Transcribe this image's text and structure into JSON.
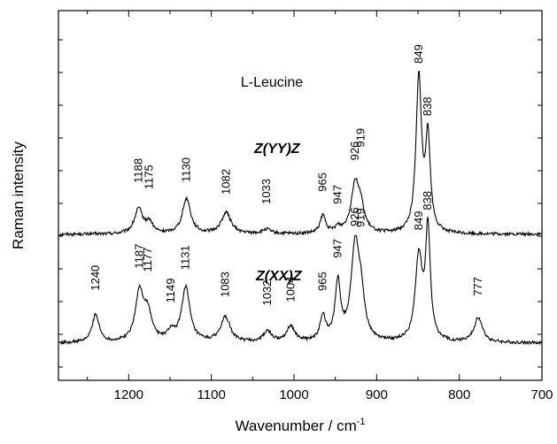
{
  "chart_data": {
    "type": "line",
    "title": "L-Leucine",
    "xlabel": "Wavenumber / cm",
    "xlabel_superscript": "-1",
    "ylabel": "Raman intensity",
    "xlim": [
      1285,
      700
    ],
    "x_reversed": true,
    "x_ticks": [
      1200,
      1100,
      1000,
      900,
      800,
      700
    ],
    "y_ticks_labeled": false,
    "grid": false,
    "legend": "none",
    "line_color": "#000000",
    "series": [
      {
        "name": "Z(YY)Z",
        "baseline": 0.0,
        "peaks": [
          {
            "x": 1188,
            "height": 0.28,
            "width": 6,
            "label": "1188"
          },
          {
            "x": 1175,
            "height": 0.12,
            "width": 5,
            "label": "1175"
          },
          {
            "x": 1130,
            "height": 0.4,
            "width": 6,
            "label": "1130"
          },
          {
            "x": 1082,
            "height": 0.24,
            "width": 7,
            "label": "1082"
          },
          {
            "x": 1033,
            "height": 0.05,
            "width": 6,
            "label": "1033"
          },
          {
            "x": 965,
            "height": 0.2,
            "width": 4,
            "label": "965"
          },
          {
            "x": 947,
            "height": 0.06,
            "width": 4,
            "label": "947"
          },
          {
            "x": 926,
            "height": 0.55,
            "width": 6,
            "label": "926"
          },
          {
            "x": 919,
            "height": 0.22,
            "width": 5,
            "label": "919"
          },
          {
            "x": 849,
            "height": 1.75,
            "width": 4,
            "label": "849"
          },
          {
            "x": 838,
            "height": 1.05,
            "width": 3.5,
            "label": "838"
          }
        ]
      },
      {
        "name": "Z(XX)Z",
        "baseline": 0.0,
        "peaks": [
          {
            "x": 1240,
            "height": 0.32,
            "width": 5,
            "label": "1240"
          },
          {
            "x": 1187,
            "height": 0.55,
            "width": 6,
            "label": "1187"
          },
          {
            "x": 1177,
            "height": 0.3,
            "width": 6,
            "label": "1177"
          },
          {
            "x": 1149,
            "height": 0.1,
            "width": 5,
            "label": "1149"
          },
          {
            "x": 1131,
            "height": 0.62,
            "width": 6,
            "label": "1131"
          },
          {
            "x": 1083,
            "height": 0.28,
            "width": 7,
            "label": "1083"
          },
          {
            "x": 1032,
            "height": 0.12,
            "width": 6,
            "label": "1032"
          },
          {
            "x": 1004,
            "height": 0.18,
            "width": 6,
            "label": "1004"
          },
          {
            "x": 965,
            "height": 0.28,
            "width": 4,
            "label": "965"
          },
          {
            "x": 947,
            "height": 0.65,
            "width": 4,
            "label": "947"
          },
          {
            "x": 926,
            "height": 1.05,
            "width": 6,
            "label": "926"
          },
          {
            "x": 919,
            "height": 0.4,
            "width": 5,
            "label": "919"
          },
          {
            "x": 849,
            "height": 0.95,
            "width": 5,
            "label": "849"
          },
          {
            "x": 838,
            "height": 1.25,
            "width": 3.5,
            "label": "838"
          },
          {
            "x": 777,
            "height": 0.28,
            "width": 6,
            "label": "777"
          }
        ]
      }
    ]
  }
}
